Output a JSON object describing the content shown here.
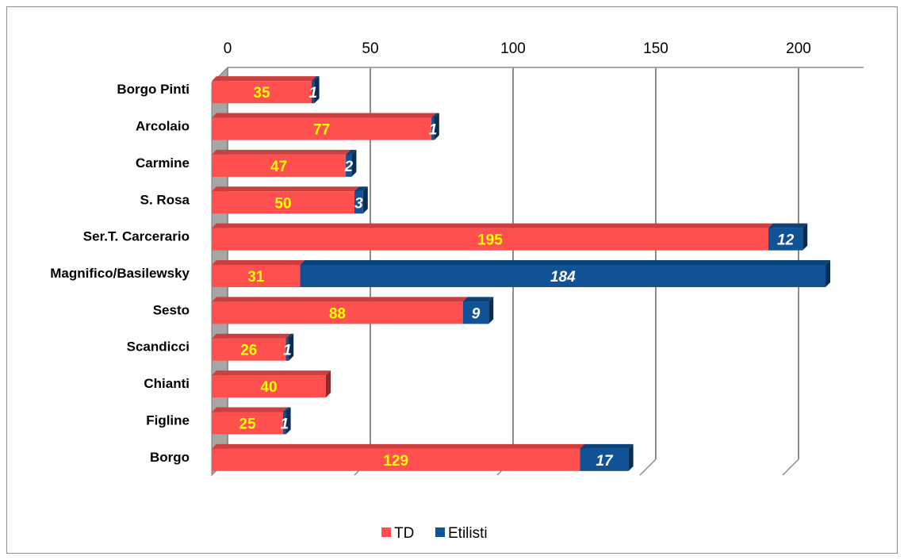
{
  "chart_data": {
    "type": "bar",
    "orientation": "horizontal",
    "stacked": true,
    "three_d": true,
    "categories": [
      "Borgo Pinti",
      "Arcolaio",
      "Carmine",
      "S. Rosa",
      "Ser.T. Carcerario",
      "Magnifico/Basilewsky",
      "Sesto",
      "Scandicci",
      "Chianti",
      "Figline",
      "Borgo"
    ],
    "series": [
      {
        "name": "TD",
        "color": "#ff4f4f",
        "values": [
          35,
          77,
          47,
          50,
          195,
          31,
          88,
          26,
          40,
          25,
          129
        ]
      },
      {
        "name": "Etilisti",
        "color": "#0f5296",
        "values": [
          1,
          1,
          2,
          3,
          12,
          184,
          9,
          1,
          0,
          1,
          17
        ]
      }
    ],
    "x_ticks": [
      0,
      50,
      100,
      150,
      200
    ],
    "xlim": [
      0,
      200
    ],
    "x_axis_position": "top",
    "grid": true,
    "legend_position": "bottom"
  }
}
